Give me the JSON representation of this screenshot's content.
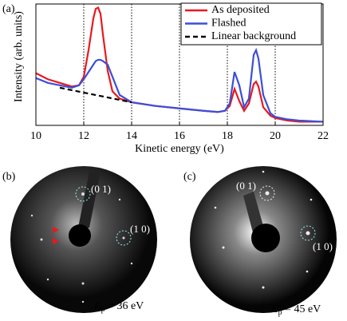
{
  "panel_a": {
    "label": "(a)"
  },
  "chart_data": {
    "type": "line",
    "xlabel": "Kinetic energy (eV)",
    "ylabel": "Intensity (arb. units)",
    "x": [
      10,
      10.5,
      11,
      11.5,
      11.8,
      12,
      12.2,
      12.4,
      12.5,
      12.6,
      12.7,
      12.8,
      13,
      13.2,
      13.5,
      14,
      15,
      16,
      17,
      17.6,
      17.9,
      18.1,
      18.3,
      18.5,
      18.7,
      18.9,
      19.1,
      19.2,
      19.3,
      19.5,
      19.8,
      20,
      20.5,
      21,
      22
    ],
    "series": [
      {
        "name": "As deposited",
        "color": "#e8191f",
        "style": "solid",
        "values": [
          43,
          38,
          35,
          32,
          33,
          40,
          62,
          88,
          96,
          97,
          92,
          75,
          45,
          28,
          22,
          19,
          16,
          14,
          12,
          11,
          12,
          16,
          30,
          20,
          12,
          18,
          34,
          36,
          32,
          15,
          8,
          6,
          4,
          3,
          3
        ]
      },
      {
        "name": "Flashed",
        "color": "#3b4fd8",
        "style": "solid",
        "values": [
          39,
          35,
          33,
          31,
          33,
          38,
          44,
          50,
          53,
          54,
          54,
          53,
          50,
          40,
          25,
          19,
          16,
          14,
          12,
          11,
          12,
          18,
          44,
          33,
          15,
          22,
          58,
          62,
          55,
          25,
          10,
          7,
          5,
          4,
          3
        ]
      },
      {
        "name": "Linear background",
        "color": "#000000",
        "style": "dashed",
        "x": [
          11,
          14
        ],
        "values": [
          31,
          19
        ]
      }
    ],
    "xlim": [
      10,
      22
    ],
    "xticks": [
      10,
      12,
      14,
      16,
      18,
      20,
      22
    ],
    "ylim": [
      0,
      100
    ],
    "grid": true,
    "legend": "upper right"
  },
  "panel_b": {
    "label": "(b)",
    "spot_01": "(0 1)",
    "spot_10": "(1 0)",
    "energy": {
      "symbol": "E",
      "subscript": "p",
      "text": " = 36 eV"
    }
  },
  "panel_c": {
    "label": "(c)",
    "spot_01": "(0 1)",
    "spot_10": "(1 0)",
    "energy": {
      "symbol": "E",
      "subscript": "p",
      "text": " = 45 eV"
    }
  }
}
